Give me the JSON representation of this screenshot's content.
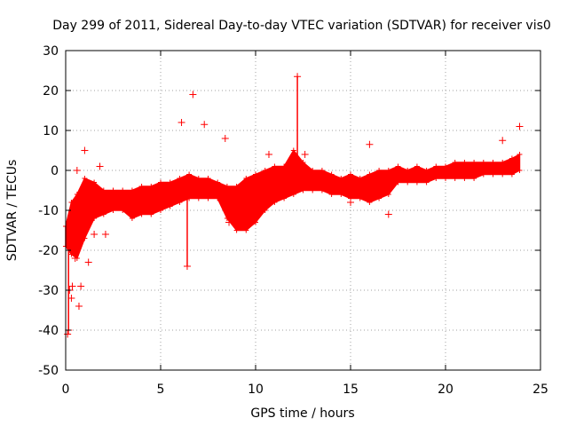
{
  "chart_data": {
    "type": "scatter",
    "title": "Day 299 of 2011, Sidereal Day-to-day VTEC variation (SDTVAR) for receiver vis0",
    "xlabel": "GPS time / hours",
    "ylabel": "SDTVAR / TECUs",
    "xlim": [
      0,
      25
    ],
    "ylim": [
      -50,
      30
    ],
    "xticks": [
      0,
      5,
      10,
      15,
      20,
      25
    ],
    "yticks": [
      -50,
      -40,
      -30,
      -20,
      -10,
      0,
      10,
      20,
      30
    ],
    "xtick_labels": [
      "0",
      "5",
      "10",
      "15",
      "20",
      "25"
    ],
    "ytick_labels": [
      "-50",
      "-40",
      "-30",
      "-20",
      "-10",
      "0",
      "10",
      "20",
      "30"
    ],
    "grid": true,
    "marker": "+",
    "series_color": "#ff0000",
    "series": [
      {
        "name": "SDTVAR",
        "band": [
          {
            "x": 0.0,
            "lo": -19,
            "hi": -14
          },
          {
            "x": 0.3,
            "lo": -21,
            "hi": -8
          },
          {
            "x": 0.6,
            "lo": -22,
            "hi": -6
          },
          {
            "x": 1.0,
            "lo": -17,
            "hi": -2
          },
          {
            "x": 1.5,
            "lo": -12,
            "hi": -3
          },
          {
            "x": 2.0,
            "lo": -11,
            "hi": -5
          },
          {
            "x": 2.5,
            "lo": -10,
            "hi": -5
          },
          {
            "x": 3.0,
            "lo": -10,
            "hi": -5
          },
          {
            "x": 3.5,
            "lo": -12,
            "hi": -5
          },
          {
            "x": 4.0,
            "lo": -11,
            "hi": -4
          },
          {
            "x": 4.5,
            "lo": -11,
            "hi": -4
          },
          {
            "x": 5.0,
            "lo": -10,
            "hi": -3
          },
          {
            "x": 5.5,
            "lo": -9,
            "hi": -3
          },
          {
            "x": 6.0,
            "lo": -8,
            "hi": -2
          },
          {
            "x": 6.5,
            "lo": -7,
            "hi": -1
          },
          {
            "x": 7.0,
            "lo": -7,
            "hi": -2
          },
          {
            "x": 7.5,
            "lo": -7,
            "hi": -2
          },
          {
            "x": 8.0,
            "lo": -7,
            "hi": -3
          },
          {
            "x": 8.5,
            "lo": -12,
            "hi": -4
          },
          {
            "x": 9.0,
            "lo": -15,
            "hi": -4
          },
          {
            "x": 9.5,
            "lo": -15,
            "hi": -2
          },
          {
            "x": 10.0,
            "lo": -13,
            "hi": -1
          },
          {
            "x": 10.5,
            "lo": -10,
            "hi": 0
          },
          {
            "x": 11.0,
            "lo": -8,
            "hi": 1
          },
          {
            "x": 11.5,
            "lo": -7,
            "hi": 1
          },
          {
            "x": 12.0,
            "lo": -6,
            "hi": 5
          },
          {
            "x": 12.5,
            "lo": -5,
            "hi": 2
          },
          {
            "x": 13.0,
            "lo": -5,
            "hi": 0
          },
          {
            "x": 13.5,
            "lo": -5,
            "hi": 0
          },
          {
            "x": 14.0,
            "lo": -6,
            "hi": -1
          },
          {
            "x": 14.5,
            "lo": -6,
            "hi": -2
          },
          {
            "x": 15.0,
            "lo": -7,
            "hi": -1
          },
          {
            "x": 15.5,
            "lo": -7,
            "hi": -2
          },
          {
            "x": 16.0,
            "lo": -8,
            "hi": -1
          },
          {
            "x": 16.5,
            "lo": -7,
            "hi": 0
          },
          {
            "x": 17.0,
            "lo": -6,
            "hi": 0
          },
          {
            "x": 17.5,
            "lo": -3,
            "hi": 1
          },
          {
            "x": 18.0,
            "lo": -3,
            "hi": 0
          },
          {
            "x": 18.5,
            "lo": -3,
            "hi": 1
          },
          {
            "x": 19.0,
            "lo": -3,
            "hi": 0
          },
          {
            "x": 19.5,
            "lo": -2,
            "hi": 1
          },
          {
            "x": 20.0,
            "lo": -2,
            "hi": 1
          },
          {
            "x": 20.5,
            "lo": -2,
            "hi": 2
          },
          {
            "x": 21.0,
            "lo": -2,
            "hi": 2
          },
          {
            "x": 21.5,
            "lo": -2,
            "hi": 2
          },
          {
            "x": 22.0,
            "lo": -1,
            "hi": 2
          },
          {
            "x": 22.5,
            "lo": -1,
            "hi": 2
          },
          {
            "x": 23.0,
            "lo": -1,
            "hi": 2
          },
          {
            "x": 23.5,
            "lo": -1,
            "hi": 3
          },
          {
            "x": 23.9,
            "lo": 0,
            "hi": 4
          }
        ],
        "points": [
          {
            "x": 0.1,
            "y": -41
          },
          {
            "x": 0.15,
            "y": -40
          },
          {
            "x": 0.2,
            "y": -30
          },
          {
            "x": 0.3,
            "y": -32
          },
          {
            "x": 0.35,
            "y": -29
          },
          {
            "x": 0.5,
            "y": -22
          },
          {
            "x": 0.6,
            "y": 0
          },
          {
            "x": 0.7,
            "y": -34
          },
          {
            "x": 0.8,
            "y": -29
          },
          {
            "x": 1.0,
            "y": 5
          },
          {
            "x": 1.2,
            "y": -23
          },
          {
            "x": 1.5,
            "y": -16
          },
          {
            "x": 1.8,
            "y": 1
          },
          {
            "x": 2.1,
            "y": -16
          },
          {
            "x": 6.1,
            "y": 12
          },
          {
            "x": 6.4,
            "y": -24
          },
          {
            "x": 6.7,
            "y": 19
          },
          {
            "x": 7.3,
            "y": 11.5
          },
          {
            "x": 8.4,
            "y": 8
          },
          {
            "x": 8.6,
            "y": -13
          },
          {
            "x": 10.7,
            "y": 4
          },
          {
            "x": 12.2,
            "y": 23.5
          },
          {
            "x": 12.6,
            "y": 4
          },
          {
            "x": 15.0,
            "y": -8
          },
          {
            "x": 16.0,
            "y": 6.5
          },
          {
            "x": 17.0,
            "y": -11
          },
          {
            "x": 23.0,
            "y": 7.5
          },
          {
            "x": 23.9,
            "y": 11
          }
        ]
      }
    ]
  }
}
